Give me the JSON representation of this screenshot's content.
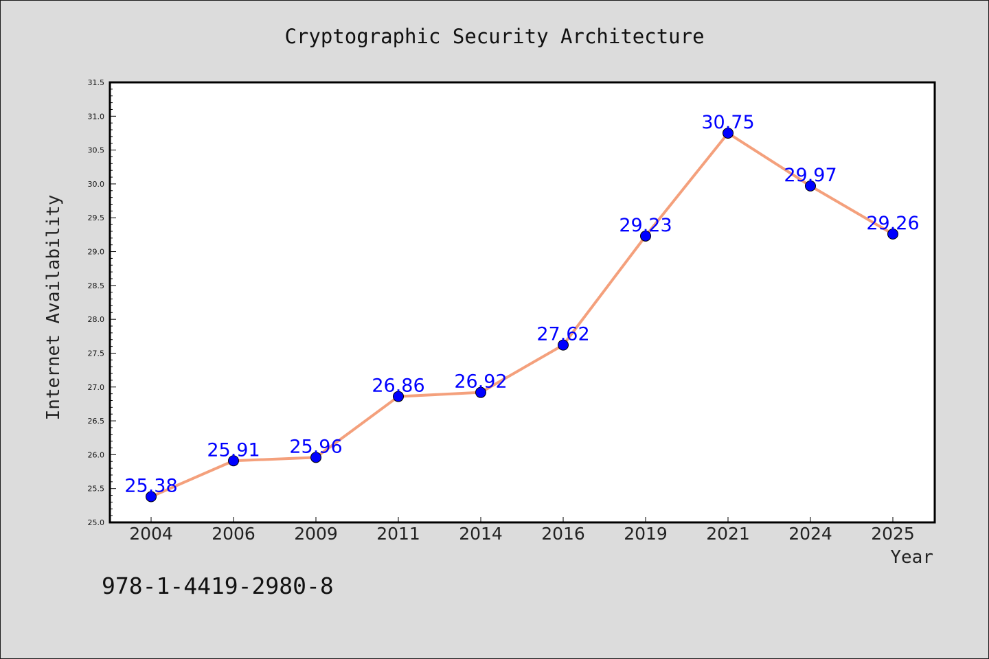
{
  "chart_data": {
    "type": "line",
    "title": "Cryptographic Security Architecture",
    "xlabel": "Year",
    "ylabel": "Internet Availability",
    "categories": [
      "2004",
      "2006",
      "2009",
      "2011",
      "2014",
      "2016",
      "2019",
      "2021",
      "2024",
      "2025"
    ],
    "series": [
      {
        "values": [
          25.38,
          25.91,
          25.96,
          26.86,
          26.92,
          27.62,
          29.23,
          30.75,
          29.97,
          29.26
        ],
        "line_color": "#f4a07c",
        "marker_color": "#0000ff"
      }
    ],
    "data_labels": [
      "25.38",
      "25.91",
      "25.96",
      "26.86",
      "26.92",
      "27.62",
      "29.23",
      "30.75",
      "29.97",
      "29.26"
    ],
    "ylim": [
      25.0,
      31.5
    ],
    "yticks": [
      "25.0",
      "25.5",
      "26.0",
      "26.5",
      "27.0",
      "27.5",
      "28.0",
      "28.5",
      "29.0",
      "29.5",
      "30.0",
      "30.5",
      "31.0",
      "31.5"
    ],
    "grid": false,
    "legend": "none"
  },
  "annotation": {
    "isbn": "978-1-4419-2980-8"
  },
  "colors": {
    "background": "#dcdcdc",
    "plot_area": "#ffffff",
    "line": "#f4a07c",
    "marker": "#0000ff",
    "data_label": "#0000ff"
  }
}
